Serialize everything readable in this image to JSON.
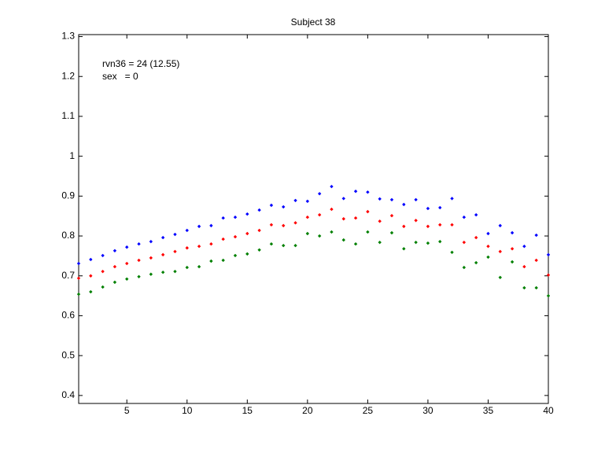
{
  "chart_data": {
    "type": "scatter",
    "title": "Subject 38",
    "annotations": [
      "rvn36 = 24 (12.55)",
      "sex   = 0"
    ],
    "x": [
      1,
      2,
      3,
      4,
      5,
      6,
      7,
      8,
      9,
      10,
      11,
      12,
      13,
      14,
      15,
      16,
      17,
      18,
      19,
      20,
      21,
      22,
      23,
      24,
      25,
      26,
      27,
      28,
      29,
      30,
      31,
      32,
      33,
      34,
      35,
      36,
      37,
      38,
      39,
      40
    ],
    "series": [
      {
        "color": "#0000ff",
        "values": [
          0.731,
          0.741,
          0.751,
          0.763,
          0.772,
          0.78,
          0.786,
          0.796,
          0.804,
          0.814,
          0.824,
          0.826,
          0.845,
          0.847,
          0.855,
          0.865,
          0.877,
          0.873,
          0.889,
          0.887,
          0.906,
          0.924,
          0.894,
          0.912,
          0.91,
          0.893,
          0.891,
          0.879,
          0.891,
          0.869,
          0.871,
          0.894,
          0.847,
          0.853,
          0.806,
          0.826,
          0.808,
          0.774,
          0.802,
          0.753
        ]
      },
      {
        "color": "#ff0000",
        "values": [
          0.694,
          0.7,
          0.711,
          0.723,
          0.731,
          0.739,
          0.745,
          0.753,
          0.761,
          0.77,
          0.774,
          0.78,
          0.792,
          0.798,
          0.806,
          0.814,
          0.828,
          0.826,
          0.833,
          0.847,
          0.853,
          0.867,
          0.843,
          0.845,
          0.861,
          0.837,
          0.851,
          0.824,
          0.839,
          0.824,
          0.828,
          0.828,
          0.784,
          0.796,
          0.774,
          0.761,
          0.768,
          0.723,
          0.739,
          0.702
        ]
      },
      {
        "color": "#008000",
        "values": [
          0.654,
          0.66,
          0.672,
          0.684,
          0.692,
          0.698,
          0.704,
          0.709,
          0.711,
          0.721,
          0.723,
          0.737,
          0.739,
          0.751,
          0.755,
          0.765,
          0.78,
          0.776,
          0.776,
          0.806,
          0.8,
          0.81,
          0.79,
          0.78,
          0.81,
          0.784,
          0.808,
          0.768,
          0.784,
          0.782,
          0.786,
          0.759,
          0.721,
          0.733,
          0.747,
          0.696,
          0.735,
          0.67,
          0.67,
          0.65
        ]
      }
    ],
    "xlim": [
      1,
      40
    ],
    "xticks": [
      5,
      10,
      15,
      20,
      25,
      30,
      35,
      40
    ],
    "ylim": [
      0.38,
      1.305
    ],
    "yticks": [
      0.4,
      0.5,
      0.6,
      0.7,
      0.8,
      0.9,
      1,
      1.1,
      1.2,
      1.3
    ]
  }
}
